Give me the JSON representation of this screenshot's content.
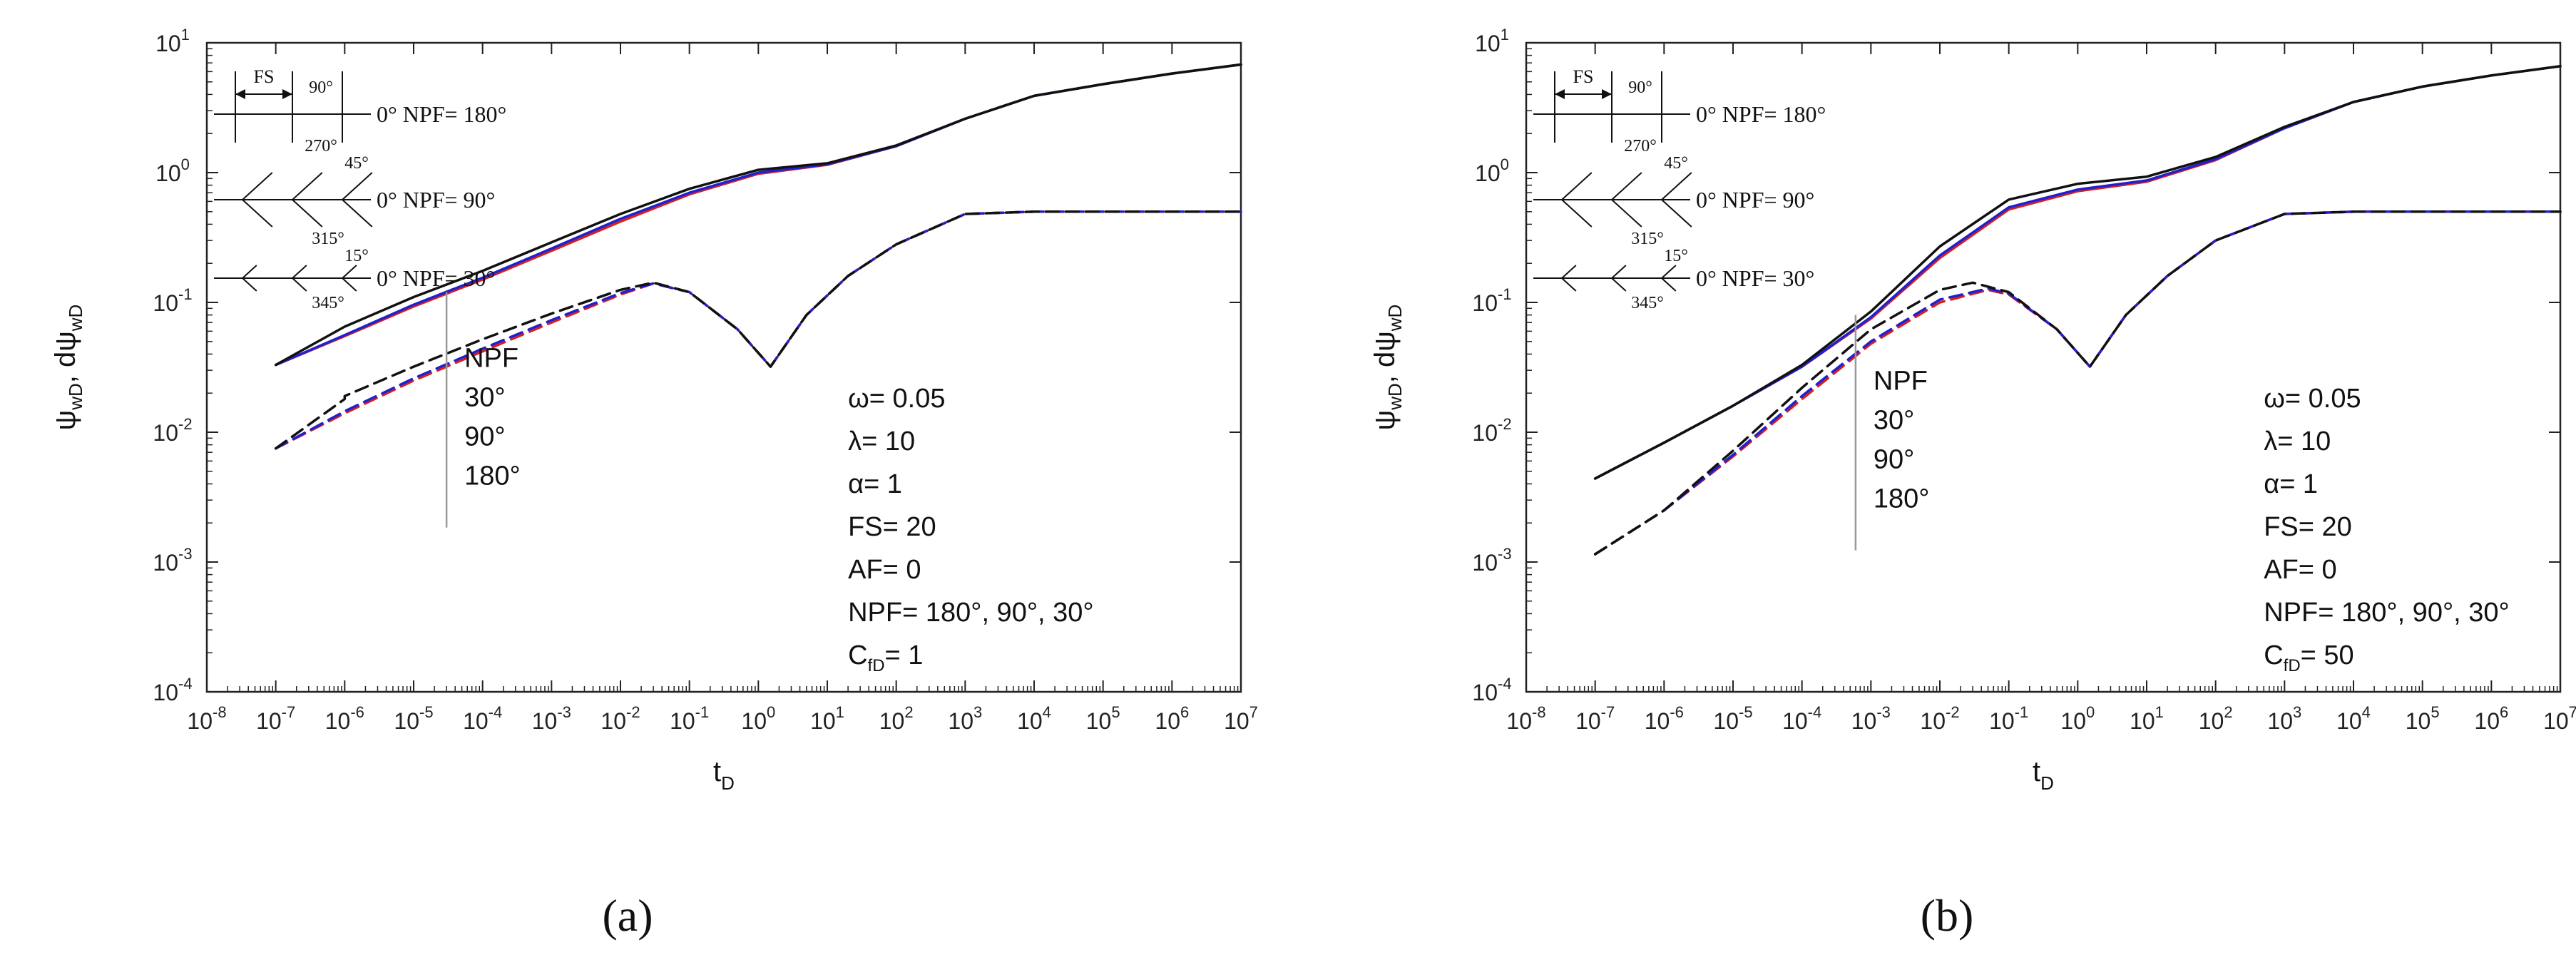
{
  "chart_data": [
    {
      "type": "line",
      "caption": "(a)",
      "xscale": "log",
      "yscale": "log",
      "xlim": [
        1e-08,
        10000000.0
      ],
      "ylim": [
        0.0001,
        10
      ],
      "xlabel_main": "t",
      "xlabel_sub": "D",
      "ylabel": [
        "ψ",
        "wD",
        ", dψ",
        "wD"
      ],
      "x_ticks_exp": [
        -8,
        -7,
        -6,
        -5,
        -4,
        -3,
        -2,
        -1,
        0,
        1,
        2,
        3,
        4,
        5,
        6,
        7
      ],
      "y_ticks_exp": [
        -4,
        -3,
        -2,
        -1,
        0,
        1
      ],
      "params": {
        "omega": "ω= 0.05",
        "lambda": "λ= 10",
        "alpha": "α= 1",
        "fs": "FS= 20",
        "af": "AF= 0",
        "npf": "NPF= 180°, 90°, 30°",
        "cfd_main": "C",
        "cfd_sub": "fD",
        "cfd_val": "= 1"
      },
      "npf_legend": {
        "title": "NPF",
        "items": [
          "30°",
          "90°",
          "180°"
        ]
      },
      "series": [
        {
          "name": "NPF=30° pressure",
          "color": "#d42020",
          "dash": false,
          "x": [
            1e-07,
            1e-06,
            1e-05,
            0.0001,
            0.001,
            0.01,
            0.1,
            1,
            10,
            100,
            1000,
            10000.0,
            100000.0,
            1000000.0,
            10000000.0
          ],
          "y": [
            0.033,
            0.055,
            0.093,
            0.15,
            0.25,
            0.42,
            0.68,
            0.98,
            1.15,
            1.6,
            2.6,
            3.9,
            4.8,
            5.8,
            6.8
          ]
        },
        {
          "name": "NPF=90° pressure",
          "color": "#2020d0",
          "dash": false,
          "x": [
            1e-07,
            1e-06,
            1e-05,
            0.0001,
            0.001,
            0.01,
            0.1,
            1,
            10,
            100,
            1000,
            10000.0,
            100000.0,
            1000000.0,
            10000000.0
          ],
          "y": [
            0.033,
            0.056,
            0.096,
            0.155,
            0.26,
            0.44,
            0.7,
            1.0,
            1.16,
            1.6,
            2.6,
            3.9,
            4.8,
            5.8,
            6.8
          ]
        },
        {
          "name": "NPF=180° pressure",
          "color": "#111111",
          "dash": false,
          "x": [
            1e-07,
            1e-06,
            1e-05,
            0.0001,
            0.001,
            0.01,
            0.1,
            1,
            10,
            100,
            1000,
            10000.0,
            100000.0,
            1000000.0,
            10000000.0
          ],
          "y": [
            0.033,
            0.065,
            0.11,
            0.175,
            0.29,
            0.48,
            0.75,
            1.05,
            1.18,
            1.62,
            2.6,
            3.9,
            4.8,
            5.8,
            6.8
          ]
        },
        {
          "name": "NPF=30° derivative",
          "color": "#d42020",
          "dash": true,
          "x": [
            1e-07,
            1e-06,
            1e-05,
            0.0001,
            0.001,
            0.01,
            0.03,
            0.1,
            0.5,
            1.5,
            5,
            20,
            100,
            1000,
            10000.0,
            10000000.0
          ],
          "y": [
            0.0075,
            0.014,
            0.025,
            0.042,
            0.07,
            0.115,
            0.14,
            0.12,
            0.062,
            0.032,
            0.08,
            0.16,
            0.28,
            0.48,
            0.5,
            0.5
          ]
        },
        {
          "name": "NPF=90° derivative",
          "color": "#2020d0",
          "dash": true,
          "x": [
            1e-07,
            1e-06,
            1e-05,
            0.0001,
            0.001,
            0.01,
            0.03,
            0.1,
            0.5,
            1.5,
            5,
            20,
            100,
            1000,
            10000.0,
            10000000.0
          ],
          "y": [
            0.0075,
            0.0145,
            0.026,
            0.044,
            0.073,
            0.118,
            0.14,
            0.12,
            0.062,
            0.032,
            0.08,
            0.16,
            0.28,
            0.48,
            0.5,
            0.5
          ]
        },
        {
          "name": "NPF=180° derivative",
          "color": "#111111",
          "dash": true,
          "x": [
            1e-07,
            1e-06,
            1e-06,
            1e-05,
            0.0001,
            0.001,
            0.01,
            0.03,
            0.1,
            0.5,
            1.5,
            5,
            20,
            100,
            1000,
            10000.0,
            10000000.0
          ],
          "y": [
            0.0075,
            0.018,
            0.019,
            0.032,
            0.052,
            0.082,
            0.125,
            0.142,
            0.12,
            0.062,
            0.032,
            0.08,
            0.16,
            0.28,
            0.48,
            0.5,
            0.5
          ]
        }
      ]
    },
    {
      "type": "line",
      "caption": "(b)",
      "xscale": "log",
      "yscale": "log",
      "xlim": [
        1e-08,
        10000000.0
      ],
      "ylim": [
        0.0001,
        10
      ],
      "xlabel_main": "t",
      "xlabel_sub": "D",
      "ylabel": [
        "ψ",
        "wD",
        ", dψ",
        "wD"
      ],
      "x_ticks_exp": [
        -8,
        -7,
        -6,
        -5,
        -4,
        -3,
        -2,
        -1,
        0,
        1,
        2,
        3,
        4,
        5,
        6,
        7
      ],
      "y_ticks_exp": [
        -4,
        -3,
        -2,
        -1,
        0,
        1
      ],
      "params": {
        "omega": "ω= 0.05",
        "lambda": "λ= 10",
        "alpha": "α= 1",
        "fs": "FS= 20",
        "af": "AF= 0",
        "npf": "NPF= 180°, 90°, 30°",
        "cfd_main": "C",
        "cfd_sub": "fD",
        "cfd_val": "= 50"
      },
      "npf_legend": {
        "title": "NPF",
        "items": [
          "30°",
          "90°",
          "180°"
        ]
      },
      "series": [
        {
          "name": "NPF=30° pressure",
          "color": "#d42020",
          "dash": false,
          "x": [
            1e-07,
            1e-06,
            1e-05,
            0.0001,
            0.001,
            0.01,
            0.1,
            1,
            10,
            100,
            1000,
            10000.0,
            100000.0,
            1000000.0,
            10000000.0
          ],
          "y": [
            0.0044,
            0.0083,
            0.016,
            0.032,
            0.075,
            0.22,
            0.52,
            0.72,
            0.85,
            1.25,
            2.2,
            3.5,
            4.6,
            5.6,
            6.6
          ]
        },
        {
          "name": "NPF=90° pressure",
          "color": "#2020d0",
          "dash": false,
          "x": [
            1e-07,
            1e-06,
            1e-05,
            0.0001,
            0.001,
            0.01,
            0.1,
            1,
            10,
            100,
            1000,
            10000.0,
            100000.0,
            1000000.0,
            10000000.0
          ],
          "y": [
            0.0044,
            0.0083,
            0.016,
            0.032,
            0.077,
            0.23,
            0.54,
            0.74,
            0.87,
            1.27,
            2.2,
            3.5,
            4.6,
            5.6,
            6.6
          ]
        },
        {
          "name": "NPF=180° pressure",
          "color": "#111111",
          "dash": false,
          "x": [
            1e-07,
            1e-06,
            1e-05,
            0.0001,
            0.001,
            0.01,
            0.1,
            1,
            10,
            100,
            1000,
            10000.0,
            100000.0,
            1000000.0,
            10000000.0
          ],
          "y": [
            0.0044,
            0.0083,
            0.016,
            0.033,
            0.085,
            0.27,
            0.62,
            0.82,
            0.93,
            1.32,
            2.25,
            3.5,
            4.6,
            5.6,
            6.6
          ]
        },
        {
          "name": "NPF=30° derivative",
          "color": "#d42020",
          "dash": true,
          "x": [
            1e-07,
            1e-06,
            1e-05,
            0.0001,
            0.001,
            0.01,
            0.05,
            0.1,
            0.5,
            1.5,
            5,
            20,
            100,
            1000,
            10000.0,
            10000000.0
          ],
          "y": [
            0.00115,
            0.0025,
            0.0065,
            0.018,
            0.048,
            0.1,
            0.125,
            0.115,
            0.062,
            0.032,
            0.08,
            0.16,
            0.3,
            0.48,
            0.5,
            0.5
          ]
        },
        {
          "name": "NPF=90° derivative",
          "color": "#2020d0",
          "dash": true,
          "x": [
            1e-07,
            1e-06,
            1e-05,
            0.0001,
            0.001,
            0.01,
            0.05,
            0.1,
            0.5,
            1.5,
            5,
            20,
            100,
            1000,
            10000.0,
            10000000.0
          ],
          "y": [
            0.00115,
            0.0025,
            0.0067,
            0.019,
            0.05,
            0.105,
            0.128,
            0.117,
            0.062,
            0.032,
            0.08,
            0.16,
            0.3,
            0.48,
            0.5,
            0.5
          ]
        },
        {
          "name": "NPF=180° derivative",
          "color": "#111111",
          "dash": true,
          "x": [
            1e-07,
            1e-06,
            1e-05,
            0.0001,
            0.001,
            0.01,
            0.03,
            0.1,
            0.5,
            1.5,
            5,
            20,
            100,
            1000,
            10000.0,
            10000000.0
          ],
          "y": [
            0.00115,
            0.0025,
            0.0072,
            0.022,
            0.062,
            0.125,
            0.142,
            0.12,
            0.062,
            0.032,
            0.08,
            0.16,
            0.3,
            0.48,
            0.5,
            0.5
          ]
        }
      ]
    }
  ],
  "inset": {
    "rows": [
      {
        "npf_label": "0° NPF= 180°",
        "angle_top": "90°",
        "angle_bottom": "270°",
        "fs_label": "FS"
      },
      {
        "npf_label": "0° NPF= 90°",
        "angle_top": "45°",
        "angle_bottom": "315°"
      },
      {
        "npf_label": "0° NPF= 30°",
        "angle_top": "15°",
        "angle_bottom": "345°"
      }
    ]
  }
}
